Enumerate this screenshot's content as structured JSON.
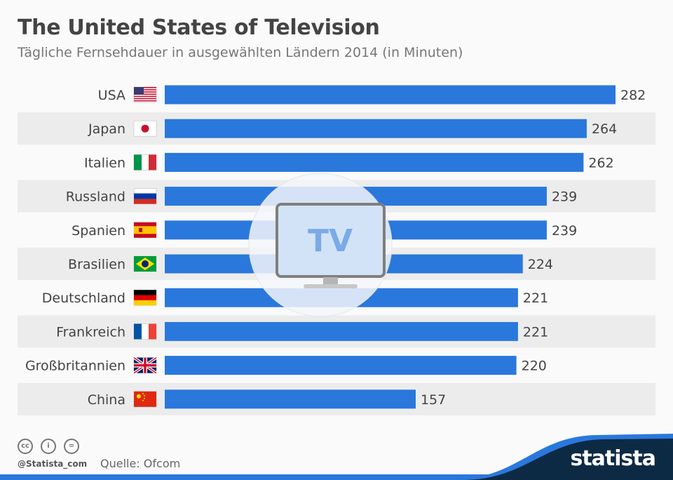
{
  "title": "The United States of Television",
  "subtitle": "Tägliche Fernsehdauer in ausgewählten Ländern 2014 (in Minuten)",
  "footer": {
    "handle": "@Statista_com",
    "source": "Quelle: Ofcom",
    "logo": "statista",
    "license_icons": [
      "cc-icon",
      "by-icon",
      "nd-icon"
    ]
  },
  "illustration": {
    "text": "TV",
    "icon": "television-icon"
  },
  "colors": {
    "bar": "#2a78dc",
    "stripe": "#ececec",
    "text": "#444444",
    "footer_dark": "#0d2a45"
  },
  "chart_data": {
    "type": "bar",
    "orientation": "horizontal",
    "categories": [
      "USA",
      "Japan",
      "Italien",
      "Russland",
      "Spanien",
      "Brasilien",
      "Deutschland",
      "Frankreich",
      "Großbritannien",
      "China"
    ],
    "values": [
      282,
      264,
      262,
      239,
      239,
      224,
      221,
      221,
      220,
      157
    ],
    "flags": [
      "us",
      "jp",
      "it",
      "ru",
      "es",
      "br",
      "de",
      "fr",
      "gb",
      "cn"
    ],
    "title": "The United States of Television",
    "subtitle": "Tägliche Fernsehdauer in ausgewählten Ländern 2014 (in Minuten)",
    "xlim": [
      0,
      282
    ],
    "grid": false,
    "data_labels": true
  }
}
